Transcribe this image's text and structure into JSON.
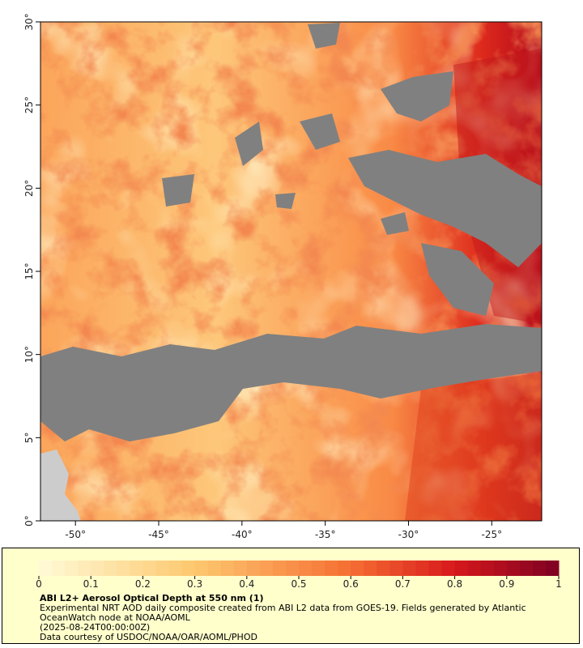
{
  "map": {
    "xlim": [
      -52.1,
      -22
    ],
    "ylim": [
      0,
      30
    ],
    "xticks": [
      {
        "value": -50,
        "label": "-50°"
      },
      {
        "value": -45,
        "label": "-45°"
      },
      {
        "value": -40,
        "label": "-40°"
      },
      {
        "value": -35,
        "label": "-35°"
      },
      {
        "value": -30,
        "label": "-30°"
      },
      {
        "value": -25,
        "label": "-25°"
      }
    ],
    "yticks": [
      {
        "value": 0,
        "label": "0°"
      },
      {
        "value": 5,
        "label": "5°"
      },
      {
        "value": 10,
        "label": "10°"
      },
      {
        "value": 15,
        "label": "15°"
      },
      {
        "value": 20,
        "label": "20°"
      },
      {
        "value": 25,
        "label": "25°"
      },
      {
        "value": 30,
        "label": "30°"
      }
    ]
  },
  "colorbar": {
    "range": [
      0,
      1
    ],
    "ticks": [
      0,
      0.1,
      0.2,
      0.3,
      0.4,
      0.5,
      0.6,
      0.7,
      0.8,
      0.9,
      1
    ]
  },
  "caption": {
    "title": "ABI L2+ Aerosol Optical Depth at 550 nm (1)",
    "lines": [
      "Experimental NRT AOD daily composite created from ABI L2 data from GOES-19. Fields generated by Atlantic OceanWatch node at NOAA/AOML",
      "(2025-08-24T00:00:00Z)",
      "Data courtesy of USDOC/NOAA/OAR/AOML/PHOD"
    ]
  }
}
